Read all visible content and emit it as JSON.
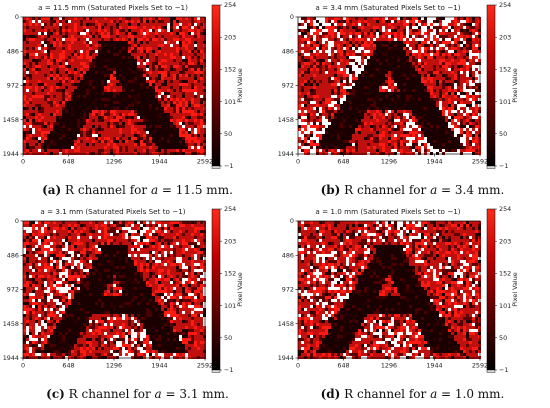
{
  "colors": {
    "dark": "#1a0000",
    "red": "#c0100e",
    "bright": "#ff1a12",
    "white": "#ffffff"
  },
  "colorbar": {
    "ticks": [
      "254",
      "203",
      "152",
      "101",
      "50",
      "−1"
    ],
    "label": "Pixel Value"
  },
  "axes": {
    "x_ticks": [
      "0",
      "648",
      "1296",
      "1944",
      "2592"
    ],
    "y_ticks": [
      "0",
      "486",
      "972",
      "1458",
      "1944"
    ]
  },
  "panels": [
    {
      "title": "a = 11.5 mm (Saturated Pixels Set to −1)",
      "caption_letter": "(a)",
      "caption_text": " R channel for ",
      "caption_var": "a",
      "caption_rest": " = 11.5 mm.",
      "saturation": 0.04
    },
    {
      "title": "a = 3.4 mm (Saturated Pixels Set to −1)",
      "caption_letter": "(b)",
      "caption_text": " R channel for ",
      "caption_var": "a",
      "caption_rest": " = 3.4 mm.",
      "saturation": 0.22
    },
    {
      "title": "a = 3.1 mm (Saturated Pixels Set to −1)",
      "caption_letter": "(c)",
      "caption_text": " R channel for ",
      "caption_var": "a",
      "caption_rest": " = 3.1 mm.",
      "saturation": 0.16
    },
    {
      "title": "a = 1.0 mm (Saturated Pixels Set to −1)",
      "caption_letter": "(d)",
      "caption_text": " R channel for ",
      "caption_var": "a",
      "caption_rest": " = 1.0 mm.",
      "saturation": 0.14
    }
  ]
}
